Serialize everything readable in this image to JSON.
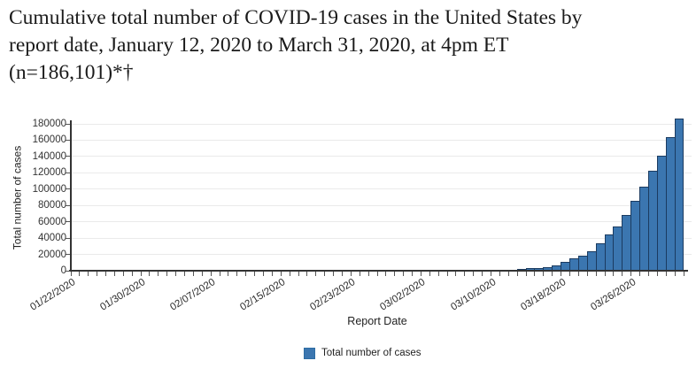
{
  "title_lines": [
    "Cumulative total number of COVID-19 cases in the United States by",
    "report date, January 12, 2020 to March 31, 2020, at 4pm ET",
    "(n=186,101)*†"
  ],
  "chart_data": {
    "type": "bar",
    "title": "Cumulative total number of COVID-19 cases in the United States by report date, January 12, 2020 to March 31, 2020, at 4pm ET (n=186,101)*†",
    "xlabel": "Report Date",
    "ylabel": "Total number of cases",
    "legend": [
      "Total number of cases"
    ],
    "legend_position": "bottom-center",
    "grid": "horizontal",
    "ylim": [
      0,
      180000
    ],
    "yticks": [
      0,
      20000,
      40000,
      60000,
      80000,
      100000,
      120000,
      140000,
      160000,
      180000
    ],
    "x_label_every": 8,
    "x_labeled_ticks": [
      "01/22/2020",
      "01/30/2020",
      "02/07/2020",
      "02/15/2020",
      "02/23/2020",
      "03/02/2020",
      "03/10/2020",
      "03/18/2020",
      "03/26/2020"
    ],
    "categories": [
      "01/22/2020",
      "01/23/2020",
      "01/24/2020",
      "01/25/2020",
      "01/26/2020",
      "01/27/2020",
      "01/28/2020",
      "01/29/2020",
      "01/30/2020",
      "01/31/2020",
      "02/01/2020",
      "02/02/2020",
      "02/03/2020",
      "02/04/2020",
      "02/05/2020",
      "02/06/2020",
      "02/07/2020",
      "02/08/2020",
      "02/09/2020",
      "02/10/2020",
      "02/11/2020",
      "02/12/2020",
      "02/13/2020",
      "02/14/2020",
      "02/15/2020",
      "02/16/2020",
      "02/17/2020",
      "02/18/2020",
      "02/19/2020",
      "02/20/2020",
      "02/21/2020",
      "02/22/2020",
      "02/23/2020",
      "02/24/2020",
      "02/25/2020",
      "02/26/2020",
      "02/27/2020",
      "02/28/2020",
      "02/29/2020",
      "03/01/2020",
      "03/02/2020",
      "03/03/2020",
      "03/04/2020",
      "03/05/2020",
      "03/06/2020",
      "03/07/2020",
      "03/08/2020",
      "03/09/2020",
      "03/10/2020",
      "03/11/2020",
      "03/12/2020",
      "03/13/2020",
      "03/14/2020",
      "03/15/2020",
      "03/16/2020",
      "03/17/2020",
      "03/18/2020",
      "03/19/2020",
      "03/20/2020",
      "03/21/2020",
      "03/22/2020",
      "03/23/2020",
      "03/24/2020",
      "03/25/2020",
      "03/26/2020",
      "03/27/2020",
      "03/28/2020",
      "03/29/2020",
      "03/30/2020",
      "03/31/2020"
    ],
    "values": [
      1,
      1,
      2,
      2,
      5,
      5,
      5,
      5,
      6,
      7,
      8,
      8,
      11,
      11,
      12,
      12,
      12,
      12,
      12,
      13,
      13,
      13,
      14,
      14,
      14,
      14,
      14,
      14,
      14,
      14,
      15,
      15,
      15,
      15,
      15,
      15,
      16,
      16,
      24,
      30,
      43,
      60,
      80,
      99,
      164,
      213,
      423,
      647,
      938,
      1215,
      1629,
      2179,
      2900,
      3487,
      4226,
      7038,
      10442,
      15219,
      18747,
      23600,
      33404,
      44183,
      54453,
      68440,
      85356,
      103321,
      122653,
      140904,
      163539,
      186101
    ],
    "colors": {
      "bar_fill": "#3b76b0",
      "bar_border": "#1b3b60",
      "legend_swatch_border": "#2e6da4",
      "gridline": "#eaeaea",
      "axis": "#333333",
      "text": "#222222"
    }
  }
}
